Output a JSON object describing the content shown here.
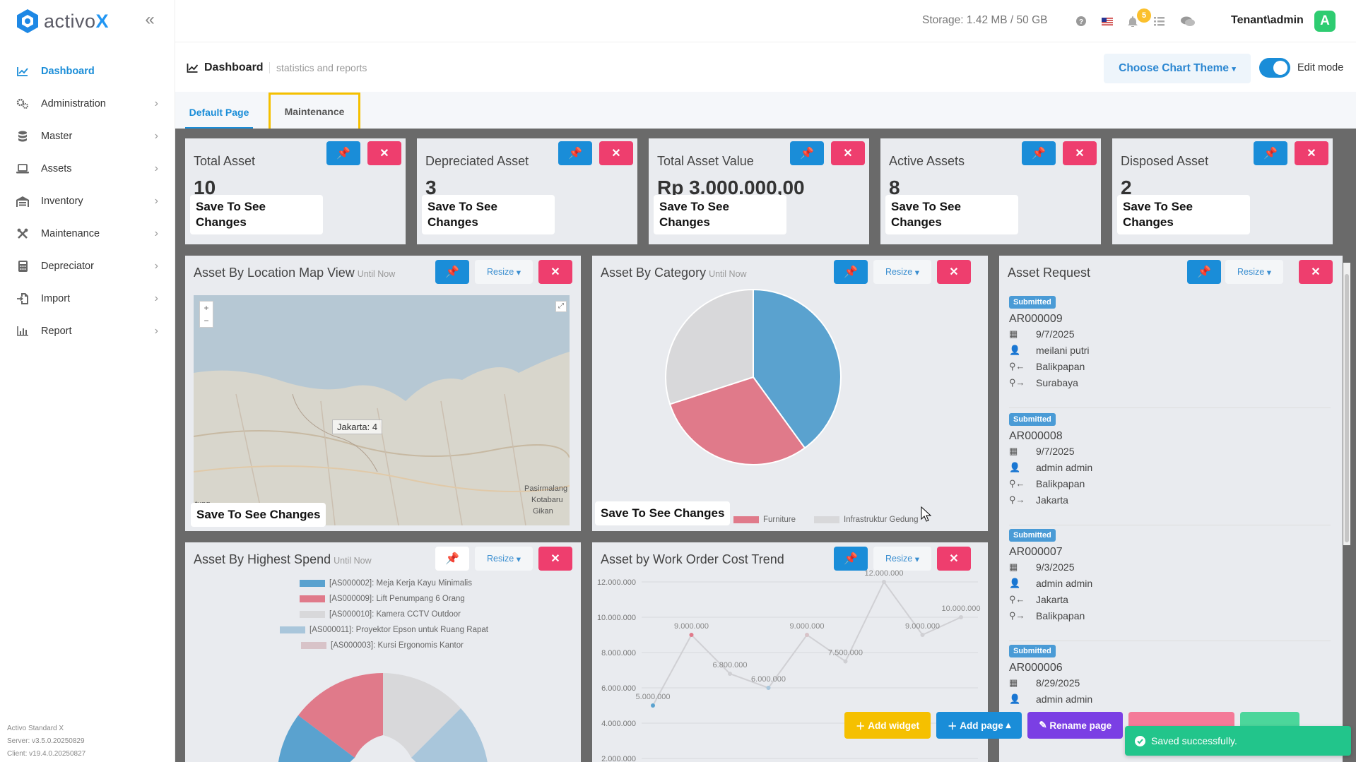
{
  "app": {
    "brand_prefix": "activo",
    "brand_suffix": "X"
  },
  "sidebar": {
    "items": [
      {
        "label": "Dashboard",
        "icon": "chart-line-icon",
        "active": true
      },
      {
        "label": "Administration",
        "icon": "gears-icon"
      },
      {
        "label": "Master",
        "icon": "database-icon"
      },
      {
        "label": "Assets",
        "icon": "laptop-icon"
      },
      {
        "label": "Inventory",
        "icon": "warehouse-icon"
      },
      {
        "label": "Maintenance",
        "icon": "tools-icon"
      },
      {
        "label": "Depreciator",
        "icon": "calculator-icon"
      },
      {
        "label": "Import",
        "icon": "file-import-icon"
      },
      {
        "label": "Report",
        "icon": "chart-bar-icon"
      }
    ],
    "footer": {
      "product": "Activo Standard X",
      "server": "Server: v3.5.0.20250829",
      "client": "Client: v19.4.0.20250827"
    }
  },
  "topbar": {
    "storage": "Storage: 1.42 MB / 50 GB",
    "notification_count": "5",
    "user": "Tenant\\admin",
    "avatar_letter": "A"
  },
  "header": {
    "title": "Dashboard",
    "subtitle": "statistics and reports",
    "chart_theme": "Choose Chart Theme",
    "edit_mode": "Edit mode"
  },
  "tabs": [
    {
      "label": "Default Page"
    },
    {
      "label": "Maintenance"
    }
  ],
  "common": {
    "save_note": "Save To See Changes",
    "resize": "Resize",
    "until_now": "Until Now"
  },
  "stats": [
    {
      "title": "Total Asset",
      "value": "10"
    },
    {
      "title": "Depreciated Asset",
      "value": "3"
    },
    {
      "title": "Total Asset Value",
      "value": "Rp 3.000.000,00"
    },
    {
      "title": "Active Assets",
      "value": "8"
    },
    {
      "title": "Disposed Asset",
      "value": "2"
    }
  ],
  "widgets": {
    "map": {
      "title": "Asset By Location Map View",
      "marker": "Jakarta: 4",
      "place_left": "tung",
      "place_right1": "Pasirmalang",
      "place_right2": "Kotabaru",
      "place_right3": "Gikan"
    },
    "category": {
      "title": "Asset By Category",
      "legend": [
        "Furniture",
        "Infrastruktur Gedung"
      ]
    },
    "request": {
      "title": "Asset Request",
      "items": [
        {
          "status": "Submitted",
          "id": "AR000009",
          "date": "9/7/2025",
          "user": "meilani putri",
          "from": "Balikpapan",
          "to": "Surabaya"
        },
        {
          "status": "Submitted",
          "id": "AR000008",
          "date": "9/7/2025",
          "user": "admin admin",
          "from": "Balikpapan",
          "to": "Jakarta"
        },
        {
          "status": "Submitted",
          "id": "AR000007",
          "date": "9/3/2025",
          "user": "admin admin",
          "from": "Jakarta",
          "to": "Balikpapan"
        },
        {
          "status": "Submitted",
          "id": "AR000006",
          "date": "8/29/2025",
          "user": "admin admin"
        }
      ]
    },
    "spend": {
      "title": "Asset By Highest Spend",
      "legend": [
        "[AS000002]: Meja Kerja Kayu Minimalis",
        "[AS000009]: Lift Penumpang 6 Orang",
        "[AS000010]: Kamera CCTV Outdoor",
        "[AS000011]: Proyektor Epson untuk Ruang Rapat",
        "[AS000003]: Kursi Ergonomis Kantor"
      ]
    },
    "trend": {
      "title": "Asset by Work Order Cost Trend"
    }
  },
  "chart_data": [
    {
      "type": "pie",
      "title": "Asset By Category",
      "labels": [
        "",
        "Furniture",
        "Infrastruktur Gedung"
      ],
      "values": [
        40,
        30,
        30
      ],
      "colors": [
        "#5aa2cf",
        "#e07a8a",
        "#d8d8da"
      ]
    },
    {
      "type": "line",
      "title": "Asset by Work Order Cost Trend",
      "yticks": [
        "12.000.000",
        "10.000.000",
        "8.000.000",
        "6.000.000",
        "4.000.000",
        "2.000.000"
      ],
      "ylim": [
        2000000,
        12000000
      ],
      "values": [
        5000000,
        9000000,
        6800000,
        6000000,
        9000000,
        7500000,
        12000000,
        9000000,
        10000000
      ],
      "labels": [
        "5.000.000",
        "9.000.000",
        "6.800.000",
        "6.000.000",
        "9.000.000",
        "7.500.000",
        "12.000.000",
        "9.000.000",
        "10.000.000"
      ]
    }
  ],
  "actions": {
    "add_widget": "Add widget",
    "add_page": "Add page",
    "rename_page": "Rename page"
  },
  "toast": {
    "message": "Saved successfully."
  }
}
